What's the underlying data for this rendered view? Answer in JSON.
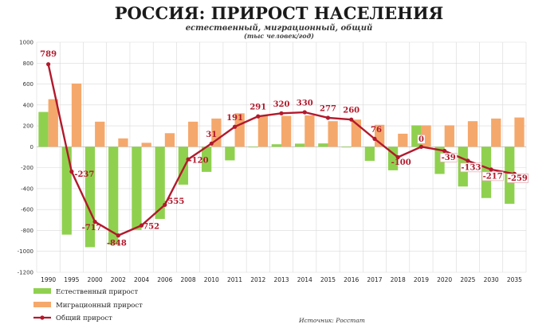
{
  "header": {
    "title": "РОССИЯ: ПРИРОСТ НАСЕЛЕНИЯ",
    "subtitle": "естественный, миграционный, общий",
    "units": "(тыс человек/год)"
  },
  "source": "Источник: Росстат",
  "colors": {
    "natural": "#8fd14f",
    "migration": "#f5a86b",
    "total": "#b2192c",
    "grid": "#d9d9d9"
  },
  "chart_data": {
    "type": "bar",
    "categories": [
      "1990",
      "1995",
      "2000",
      "2002",
      "2004",
      "2006",
      "2008",
      "2010",
      "2011",
      "2012",
      "2013",
      "2014",
      "2015",
      "2016",
      "2017",
      "2018",
      "2019",
      "2020",
      "2025",
      "2030",
      "2035"
    ],
    "series": [
      {
        "name": "Естественный прирост",
        "type": "bar",
        "values": [
          333,
          -840,
          -960,
          -935,
          -795,
          -690,
          -362,
          -240,
          -130,
          -4,
          24,
          30,
          32,
          -2,
          -135,
          -225,
          205,
          -260,
          -380,
          -490,
          -545
        ]
      },
      {
        "name": "Миграционный прирост",
        "type": "bar",
        "values": [
          455,
          605,
          240,
          80,
          38,
          130,
          240,
          270,
          320,
          295,
          295,
          300,
          245,
          260,
          210,
          125,
          205,
          205,
          245,
          270,
          280
        ]
      },
      {
        "name": "Общий прирост",
        "type": "line",
        "values": [
          789,
          -237,
          -717,
          -848,
          -752,
          -555,
          -120,
          31,
          191,
          291,
          320,
          330,
          277,
          260,
          76,
          -100,
          0,
          -39,
          -133,
          -217,
          -259
        ]
      }
    ],
    "data_labels": [
      "789",
      "-237",
      "-717",
      "-848",
      "-752",
      "-555",
      "-120",
      "31",
      "191",
      "291",
      "320",
      "330",
      "277",
      "260",
      "76",
      "-100",
      "0",
      "-39",
      "-133",
      "-217",
      "-259"
    ],
    "boxed_labels": [
      16,
      17,
      18,
      19,
      20
    ],
    "yticks": [
      1000,
      800,
      600,
      400,
      200,
      0,
      -200,
      -400,
      -600,
      -800,
      -1000,
      -1200
    ],
    "ytick_labels": [
      "1000",
      "800",
      "600",
      "400",
      "200",
      "0",
      "-200",
      "-400",
      "-600",
      "-800",
      "-1000",
      "-1200"
    ],
    "ylim": [
      -1200,
      1000
    ],
    "grid": true,
    "legend_position": "bottom-left",
    "legend": [
      "Естественный прирост",
      "Миграционный прирост",
      "Общий прирост"
    ]
  }
}
